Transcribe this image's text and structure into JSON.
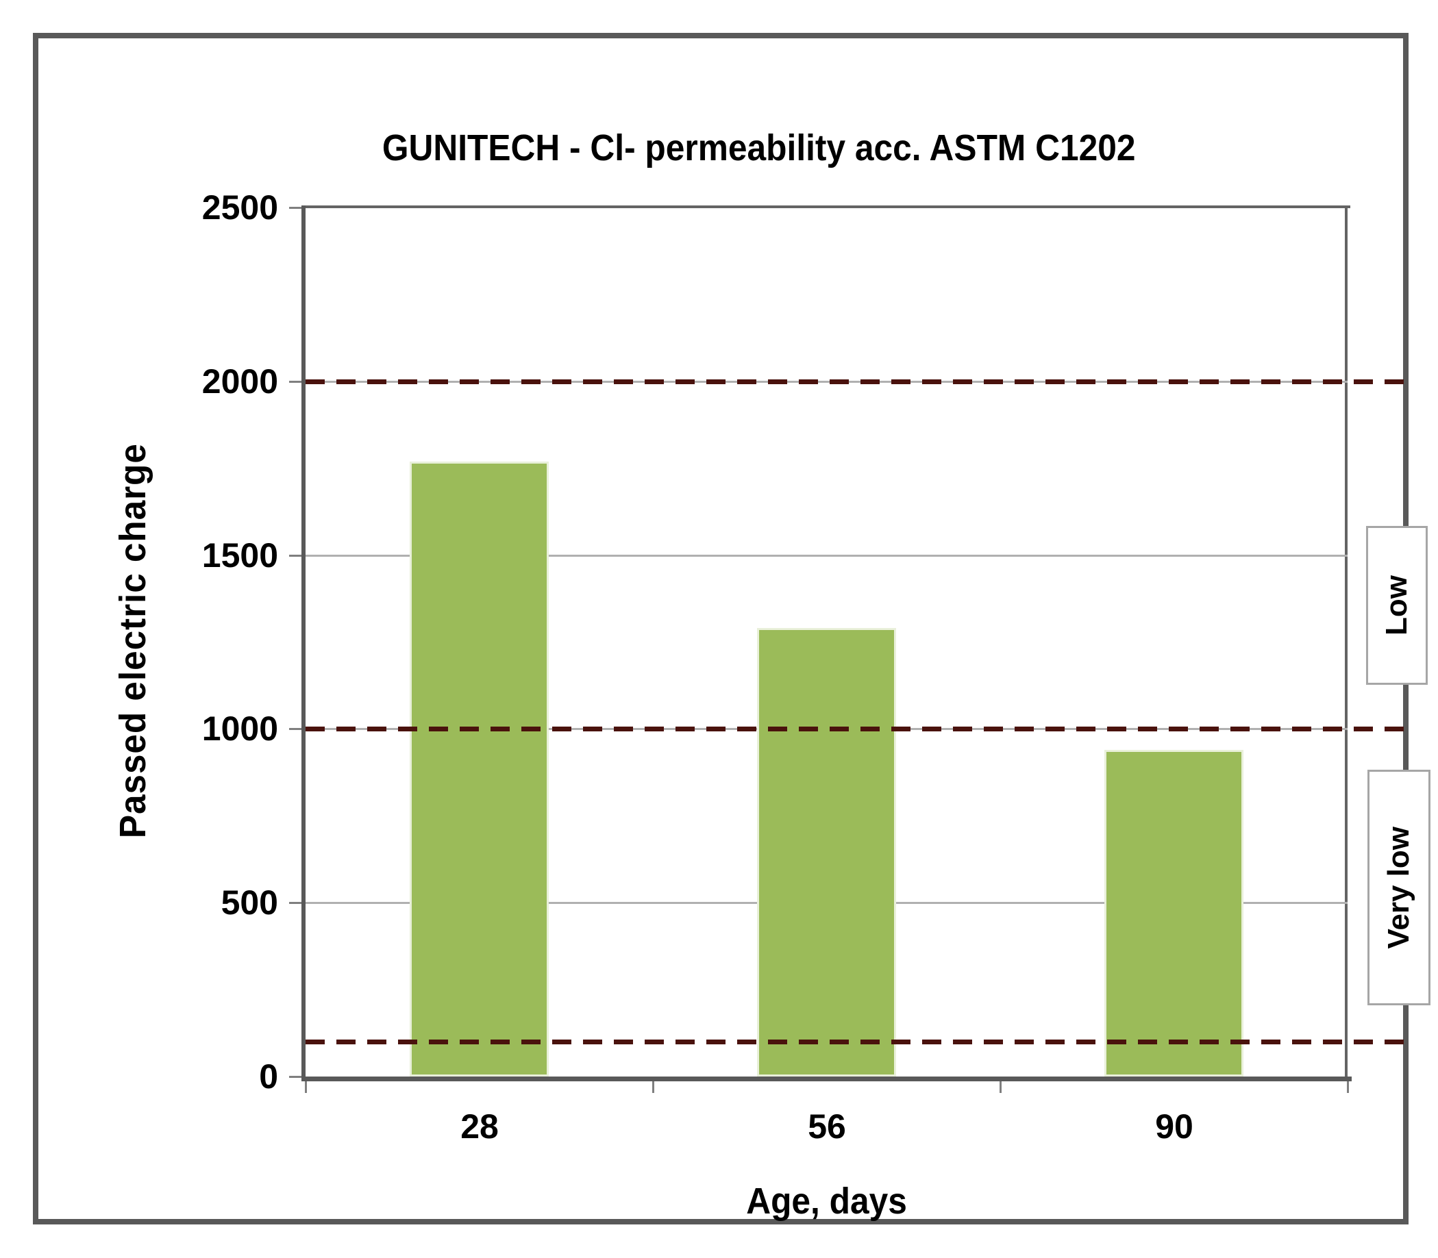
{
  "chart_data": {
    "type": "bar",
    "title": "GUNITECH - Cl- permeability acc. ASTM C1202",
    "xlabel": "Age, days",
    "ylabel": "Passed electric charge",
    "categories": [
      "28",
      "56",
      "90"
    ],
    "values": [
      1770,
      1290,
      940
    ],
    "ylim": [
      0,
      2500
    ],
    "ytick_step": 500,
    "ytick_labels": [
      "0",
      "500",
      "1000",
      "1500",
      "2000",
      "2500"
    ],
    "grid": "horizontal-major",
    "legend": "none",
    "threshold_lines": [
      {
        "value": 2000,
        "style": "dashed",
        "color": "#4a120d"
      },
      {
        "value": 1000,
        "style": "dashed",
        "color": "#4a120d"
      },
      {
        "value": 100,
        "style": "dashed",
        "color": "#4a120d"
      }
    ],
    "region_labels": [
      {
        "label": "Low",
        "between": [
          1000,
          2000
        ]
      },
      {
        "label": "Very low",
        "between": [
          100,
          1000
        ]
      }
    ]
  },
  "colors": {
    "bar": "#9bbb59",
    "bar_edge": "#e9f0da",
    "threshold_dash": "#4a120d",
    "gridline": "#b0b0b0",
    "axis": "#595959",
    "frame_border": "#595959",
    "region_box_border": "#a6a6a6",
    "text": "#000000",
    "background": "#ffffff"
  }
}
